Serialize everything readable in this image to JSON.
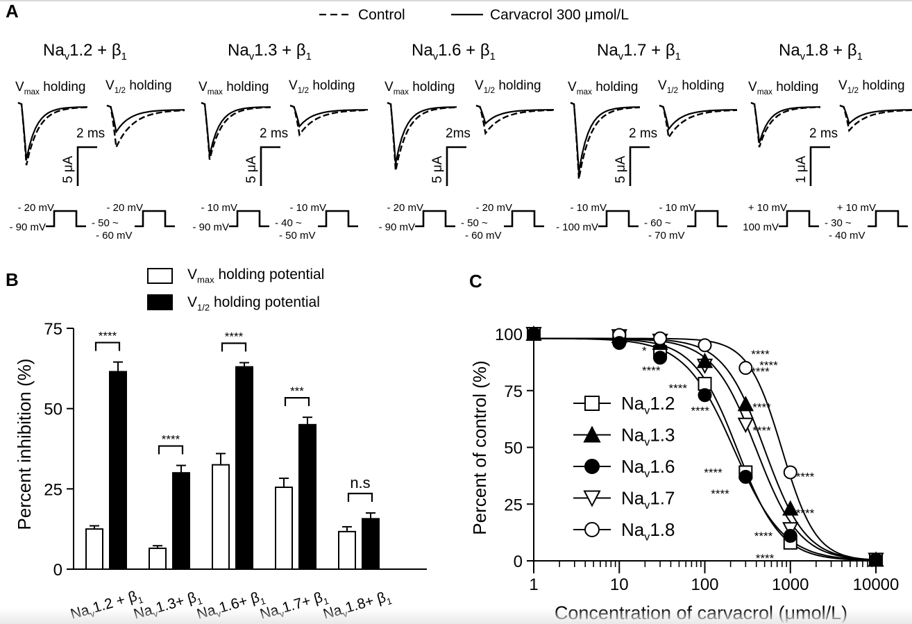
{
  "panel_a": {
    "label": "A",
    "legend": {
      "control": "Control",
      "carvacrol": "Carvacrol 300 μmol/L"
    },
    "holding_labels": {
      "vmax": "max",
      "v12": "1/2",
      "suffix": " holding",
      "v": "V"
    },
    "channels": [
      {
        "name": "Na",
        "sub": "v",
        "rest": "1.2 + β",
        "sub2": "1",
        "time_scale": "2 ms",
        "current_scale": "5 μA",
        "vmax_protocol": {
          "top": "- 20 mV",
          "bottom": "- 90 mV"
        },
        "v12_protocol": {
          "top": "- 20 mV",
          "bottom1": "- 50 ~",
          "bottom2": "- 60 mV"
        }
      },
      {
        "name": "Na",
        "sub": "v",
        "rest": "1.3 + β",
        "sub2": "1",
        "time_scale": "2 ms",
        "current_scale": "5 μA",
        "vmax_protocol": {
          "top": "- 10 mV",
          "bottom": "- 90 mV"
        },
        "v12_protocol": {
          "top": "- 10 mV",
          "bottom1": "- 40 ~",
          "bottom2": "- 50 mV"
        }
      },
      {
        "name": "Na",
        "sub": "v",
        "rest": "1.6 + β",
        "sub2": "1",
        "time_scale": "2ms",
        "current_scale": "5 μA",
        "vmax_protocol": {
          "top": "- 20 mV",
          "bottom": "- 90 mV"
        },
        "v12_protocol": {
          "top": "- 20 mV",
          "bottom1": "- 50 ~",
          "bottom2": "- 60 mV"
        }
      },
      {
        "name": "Na",
        "sub": "v",
        "rest": "1.7 + β",
        "sub2": "1",
        "time_scale": "2 ms",
        "current_scale": "5 μA",
        "vmax_protocol": {
          "top": "- 10 mV",
          "bottom": "- 100 mV"
        },
        "v12_protocol": {
          "top": "- 10 mV",
          "bottom1": "- 60 ~",
          "bottom2": "- 70 mV"
        }
      },
      {
        "name": "Na",
        "sub": "v",
        "rest": "1.8 + β",
        "sub2": "1",
        "time_scale": "2 ms",
        "current_scale": "1 μA",
        "vmax_protocol": {
          "top": "+ 10 mV",
          "bottom": "100 mV"
        },
        "v12_protocol": {
          "top": "+ 10 mV",
          "bottom1": "- 30 ~",
          "bottom2": "- 40 mV"
        }
      }
    ]
  },
  "chart_data": [
    {
      "panel": "B",
      "type": "bar",
      "title": "",
      "ylabel": "Percent inhibition (%)",
      "xlabel": "",
      "ylim": [
        0,
        75
      ],
      "yticks": [
        0,
        25,
        50,
        75
      ],
      "grid": false,
      "legend_position": "top",
      "categories": [
        "Nav1.2 + β1",
        "Nav1.3+ β1",
        "Nav1.6+ β1",
        "Nav1.7+ β1",
        "Nav1.8+ β1"
      ],
      "category_parts": [
        {
          "a": "Na",
          "b": "v",
          "c": "1.2 + β",
          "d": "1"
        },
        {
          "a": "Na",
          "b": "v",
          "c": "1.3+ β",
          "d": "1"
        },
        {
          "a": "Na",
          "b": "v",
          "c": "1.6+ β",
          "d": "1"
        },
        {
          "a": "Na",
          "b": "v",
          "c": "1.7+ β",
          "d": "1"
        },
        {
          "a": "Na",
          "b": "v",
          "c": "1.8+ β",
          "d": "1"
        }
      ],
      "series": [
        {
          "name": "Vmax holding potential",
          "legend_main": "V",
          "legend_sub": "max",
          "legend_rest": " holding potential",
          "fill": "#ffffff",
          "values": [
            12.5,
            6.5,
            32.5,
            25.5,
            11.7
          ],
          "errors": [
            1.0,
            0.8,
            3.5,
            2.8,
            1.5
          ]
        },
        {
          "name": "V1/2 holding potential",
          "legend_main": "V",
          "legend_sub": "1/2",
          "legend_rest": " holding potential",
          "fill": "#000000",
          "values": [
            61.5,
            30.0,
            63.0,
            45.0,
            15.7
          ],
          "errors": [
            3.0,
            2.3,
            1.3,
            2.3,
            1.8
          ]
        }
      ],
      "significance": [
        "****",
        "****",
        "****",
        "***",
        "n.s"
      ]
    },
    {
      "panel": "C",
      "type": "scatter",
      "title": "",
      "xlabel": "Concentration of carvacrol (μmol/L)",
      "ylabel": "Percent of control (%)",
      "xscale": "log",
      "xlim": [
        1,
        10000
      ],
      "ylim": [
        0,
        100
      ],
      "xticks": [
        "1",
        "10",
        "100",
        "1000",
        "10000"
      ],
      "yticks": [
        0,
        25,
        50,
        75,
        100
      ],
      "grid": false,
      "legend_position": "center-left",
      "x": [
        1,
        10,
        30,
        100,
        300,
        1000,
        10000
      ],
      "series": [
        {
          "name": "Nav1.2",
          "label_main": "Na",
          "label_sub": "v",
          "label_rest": "1.2",
          "marker": "open-square",
          "values": [
            100,
            98.5,
            92,
            78,
            39,
            8,
            0.5
          ],
          "ic50": 240,
          "hill": 1.7
        },
        {
          "name": "Nav1.3",
          "label_main": "Na",
          "label_sub": "v",
          "label_rest": "1.3",
          "marker": "filled-triangle",
          "values": [
            100,
            99,
            96,
            88,
            69,
            23,
            0.5
          ],
          "ic50": 500,
          "hill": 1.8
        },
        {
          "name": "Nav1.6",
          "label_main": "Na",
          "label_sub": "v",
          "label_rest": "1.6",
          "marker": "filled-circle",
          "values": [
            100,
            96,
            89.5,
            73,
            37,
            11,
            0.5
          ],
          "ic50": 220,
          "hill": 1.5
        },
        {
          "name": "Nav1.7",
          "label_main": "Na",
          "label_sub": "v",
          "label_rest": "1.7",
          "marker": "open-inverted-triangle",
          "values": [
            100,
            99,
            97,
            86,
            60,
            14,
            0.5
          ],
          "ic50": 400,
          "hill": 1.7
        },
        {
          "name": "Nav1.8",
          "label_main": "Na",
          "label_sub": "v",
          "label_rest": "1.8",
          "marker": "open-circle",
          "values": [
            100,
            99.5,
            98,
            95,
            85,
            39,
            0.5
          ],
          "ic50": 800,
          "hill": 2.2
        }
      ],
      "annotations": [
        {
          "text": "*",
          "x": 30,
          "y": 92,
          "series": "Nav1.2"
        },
        {
          "text": "****",
          "x": 30,
          "y": 89.5,
          "series": "Nav1.6"
        },
        {
          "text": "****",
          "x": 100,
          "y": 78,
          "series": "Nav1.2"
        },
        {
          "text": "****",
          "x": 100,
          "y": 73,
          "series": "Nav1.6"
        },
        {
          "text": "****",
          "x": 300,
          "y": 88,
          "series": "Nav1.3"
        },
        {
          "text": "****",
          "x": 300,
          "y": 86,
          "series": "Nav1.7"
        },
        {
          "text": "****",
          "x": 300,
          "y": 85,
          "series": "Nav1.8"
        },
        {
          "text": "****",
          "x": 300,
          "y": 69,
          "series": "Nav1.3"
        },
        {
          "text": "****",
          "x": 300,
          "y": 60,
          "series": "Nav1.7"
        },
        {
          "text": "****",
          "x": 300,
          "y": 39,
          "series": "Nav1.2"
        },
        {
          "text": "****",
          "x": 300,
          "y": 37,
          "series": "Nav1.6"
        },
        {
          "text": "****",
          "x": 1000,
          "y": 39,
          "series": "Nav1.8"
        },
        {
          "text": "****",
          "x": 1000,
          "y": 23,
          "series": "Nav1.3"
        },
        {
          "text": "****",
          "x": 1000,
          "y": 11,
          "series": "Nav1.6"
        },
        {
          "text": "****",
          "x": 1000,
          "y": 8,
          "series": "Nav1.2"
        }
      ]
    }
  ],
  "panel_b": {
    "label": "B"
  },
  "panel_c": {
    "label": "C"
  }
}
